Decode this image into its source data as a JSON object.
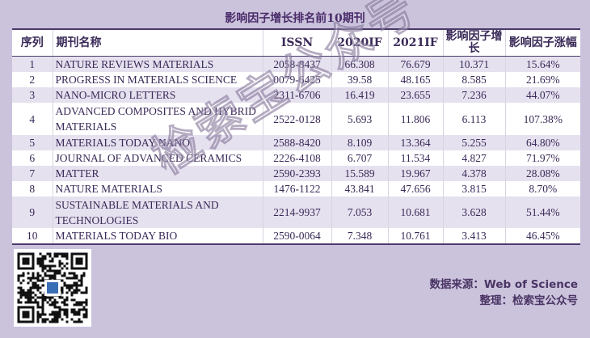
{
  "title": "影响因子增长排名前10期刊",
  "table": {
    "header": [
      "序列",
      "期刊名称",
      "ISSN",
      "2020IF",
      "2021IF",
      "影响因子增长",
      "影响因子涨幅"
    ],
    "rows": [
      [
        "1",
        "NATURE REVIEWS MATERIALS",
        "2058-8437",
        "66.308",
        "76.679",
        "10.371",
        "15.64%"
      ],
      [
        "2",
        "PROGRESS IN MATERIALS SCIENCE",
        "0079-6425",
        "39.58",
        "48.165",
        "8.585",
        "21.69%"
      ],
      [
        "3",
        "NANO-MICRO LETTERS",
        "2311-6706",
        "16.419",
        "23.655",
        "7.236",
        "44.07%"
      ],
      [
        "4",
        "ADVANCED COMPOSITES AND HYBRID MATERIALS",
        "2522-0128",
        "5.693",
        "11.806",
        "6.113",
        "107.38%"
      ],
      [
        "5",
        "MATERIALS TODAY NANO",
        "2588-8420",
        "8.109",
        "13.364",
        "5.255",
        "64.80%"
      ],
      [
        "6",
        "JOURNAL OF ADVANCED CERAMICS",
        "2226-4108",
        "6.707",
        "11.534",
        "4.827",
        "71.97%"
      ],
      [
        "7",
        "MATTER",
        "2590-2393",
        "15.589",
        "19.967",
        "4.378",
        "28.08%"
      ],
      [
        "8",
        "NATURE MATERIALS",
        "1476-1122",
        "43.841",
        "47.656",
        "3.815",
        "8.70%"
      ],
      [
        "9",
        "SUSTAINABLE MATERIALS AND TECHNOLOGIES",
        "2214-9937",
        "7.053",
        "10.681",
        "3.628",
        "51.44%"
      ],
      [
        "10",
        "MATERIALS TODAY BIO",
        "2590-0064",
        "7.348",
        "10.761",
        "3.413",
        "46.45%"
      ]
    ]
  },
  "watermark": "检索宝公众号",
  "footer": {
    "source": "数据来源：Web of Science",
    "organizer": "整理：检索宝公众号"
  }
}
